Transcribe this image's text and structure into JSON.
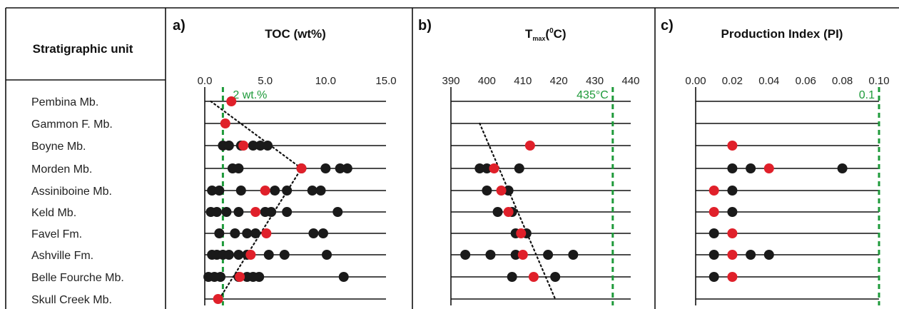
{
  "strat_header": "Stratigraphic unit",
  "units": [
    "Pembina Mb.",
    "Gammon F. Mb.",
    "Boyne Mb.",
    "Morden Mb.",
    "Assiniboine Mb.",
    "Keld Mb.",
    "Favel Fm.",
    "Ashville Fm.",
    "Belle Fourche Mb.",
    "Skull Creek Mb."
  ],
  "colors": {
    "black_points": "#1a1a1a",
    "red_points": "#e0202a",
    "reference_line": "#1e9a3a",
    "trend_line": "#111111"
  },
  "chart_data": [
    {
      "type": "scatter",
      "panel": "a)",
      "title": "TOC (wt%)",
      "xlim": [
        0,
        15
      ],
      "xticks": [
        "0.0",
        "5.0",
        "10.0",
        "15.0"
      ],
      "reference": {
        "x": 1.5,
        "label": "2 wt.%"
      },
      "trend": [
        [
          0.5,
          0
        ],
        [
          8.0,
          3
        ],
        [
          1.2,
          9
        ]
      ],
      "black": [
        [],
        [],
        [
          1.5,
          2.0,
          3.0,
          4.0,
          4.6,
          5.2
        ],
        [
          2.3,
          2.8,
          8.0,
          10.0,
          11.2,
          11.8
        ],
        [
          0.6,
          1.2,
          3.0,
          5.8,
          6.8,
          8.9,
          9.6
        ],
        [
          0.5,
          1.0,
          1.8,
          2.8,
          5.0,
          5.5,
          6.8,
          11.0
        ],
        [
          1.2,
          2.5,
          3.5,
          4.2,
          9.0,
          9.8
        ],
        [
          0.6,
          1.0,
          1.5,
          2.0,
          2.8,
          3.5,
          5.3,
          6.6,
          10.1
        ],
        [
          0.3,
          0.8,
          1.3,
          2.8,
          3.5,
          4.0,
          4.5,
          11.5
        ],
        []
      ],
      "red": [
        [
          2.2
        ],
        [
          1.7
        ],
        [
          3.2
        ],
        [
          8.0
        ],
        [
          5.0
        ],
        [
          4.2
        ],
        [
          5.1
        ],
        [
          3.8
        ],
        [
          2.9
        ],
        [
          1.1
        ]
      ]
    },
    {
      "type": "scatter",
      "panel": "b)",
      "title": "T",
      "title_sub": "max",
      "title_sup": "0",
      "title_end": "C)",
      "title_open": "(",
      "xlim": [
        390,
        440
      ],
      "xticks": [
        "390",
        "400",
        "410",
        "420",
        "430",
        "440"
      ],
      "reference": {
        "x": 435,
        "label": "435°C"
      },
      "trend": [
        [
          398,
          1
        ],
        [
          419,
          9
        ]
      ],
      "black": [
        [],
        [],
        [],
        [
          398,
          400,
          409
        ],
        [
          400,
          406
        ],
        [
          403,
          407
        ],
        [
          408,
          411
        ],
        [
          394,
          401,
          408,
          417,
          424
        ],
        [
          407,
          419
        ],
        []
      ],
      "red": [
        [],
        [],
        [
          412
        ],
        [
          402
        ],
        [
          404
        ],
        [
          406
        ],
        [
          409.5
        ],
        [
          410
        ],
        [
          413
        ],
        []
      ]
    },
    {
      "type": "scatter",
      "panel": "c)",
      "title": "Production Index (PI)",
      "xlim": [
        0,
        0.1
      ],
      "xticks": [
        "0.00",
        "0.02",
        "0.04",
        "0.06",
        "0.08",
        "0.10"
      ],
      "reference": {
        "x": 0.1,
        "label": "0.1"
      },
      "black": [
        [],
        [],
        [],
        [
          0.02,
          0.03,
          0.08
        ],
        [
          0.02
        ],
        [
          0.02
        ],
        [
          0.01
        ],
        [
          0.01,
          0.03,
          0.04
        ],
        [
          0.01
        ],
        []
      ],
      "red": [
        [],
        [],
        [
          0.02
        ],
        [
          0.04
        ],
        [
          0.01
        ],
        [
          0.01
        ],
        [
          0.02
        ],
        [
          0.02
        ],
        [
          0.02
        ],
        []
      ]
    }
  ]
}
